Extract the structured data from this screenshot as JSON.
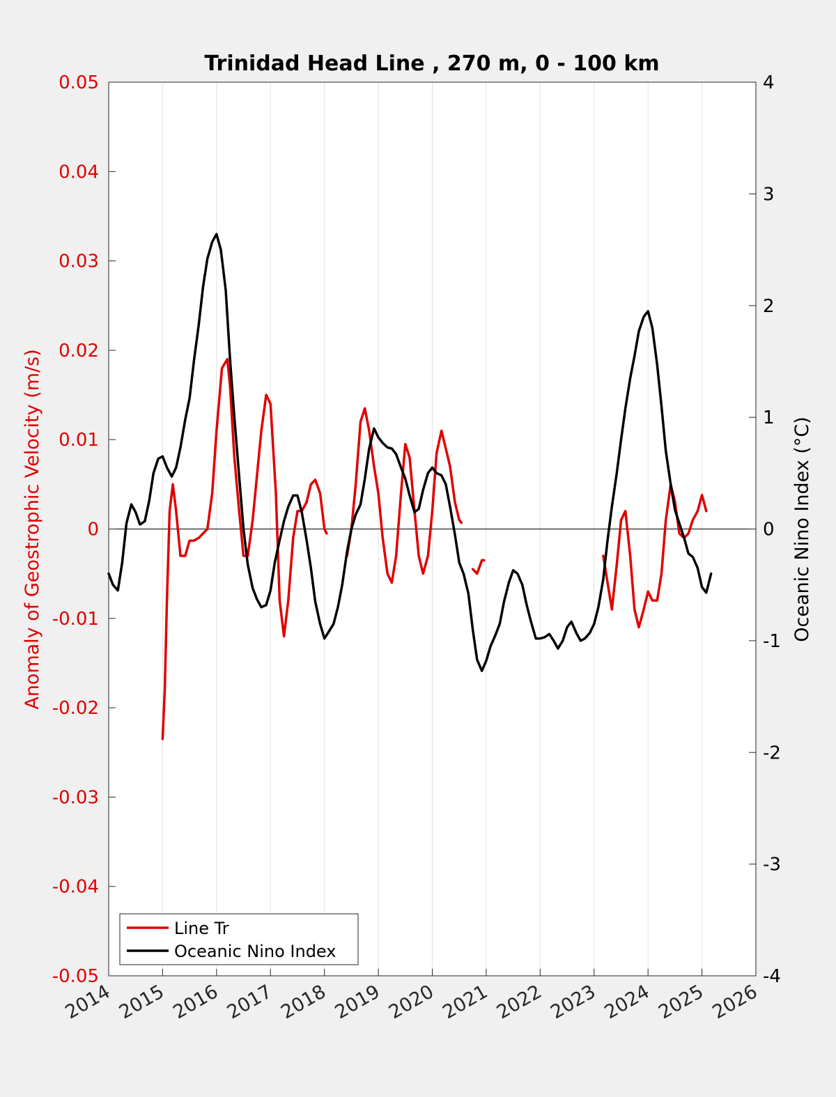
{
  "chart_data": {
    "type": "line",
    "title": "Trinidad Head Line , 270 m, 0 - 100 km",
    "xlabel": "",
    "ylabel_left": "Anomaly of Geostrophic Velocity (m/s)",
    "ylabel_right": "Oceanic Nino Index (°C)",
    "xlim": [
      2014,
      2026
    ],
    "ylim_left": [
      -0.05,
      0.05
    ],
    "ylim_right": [
      -4,
      4
    ],
    "x_ticks": [
      "2014",
      "2015",
      "2016",
      "2017",
      "2018",
      "2019",
      "2020",
      "2021",
      "2022",
      "2023",
      "2024",
      "2025",
      "2026"
    ],
    "y_ticks_left": [
      "0.05",
      "0.04",
      "0.03",
      "0.02",
      "0.01",
      "0",
      "-0.01",
      "-0.02",
      "-0.03",
      "-0.04",
      "-0.05"
    ],
    "y_ticks_right": [
      "4",
      "3",
      "2",
      "1",
      "0",
      "-1",
      "-2",
      "-3",
      "-4"
    ],
    "grid": "vertical",
    "legend_position": "bottom-left",
    "colors": {
      "left_axis": "#e00000",
      "line_tr": "#e00000",
      "oni": "#000000",
      "background": "#f0f0f0",
      "plot_area": "#ffffff"
    },
    "series": [
      {
        "name": "Line Tr",
        "axis": "left",
        "segments": [
          [
            [
              2015.0,
              -0.0235
            ],
            [
              2015.04,
              -0.018
            ],
            [
              2015.08,
              -0.008
            ],
            [
              2015.13,
              0.002
            ],
            [
              2015.19,
              0.005
            ],
            [
              2015.25,
              0.002
            ],
            [
              2015.33,
              -0.003
            ],
            [
              2015.42,
              -0.003
            ],
            [
              2015.5,
              -0.0013
            ],
            [
              2015.58,
              -0.0013
            ],
            [
              2015.67,
              -0.001
            ],
            [
              2015.75,
              -0.0005
            ],
            [
              2015.83,
              0.0
            ],
            [
              2015.92,
              0.004
            ],
            [
              2016.0,
              0.011
            ],
            [
              2016.1,
              0.018
            ],
            [
              2016.2,
              0.019
            ],
            [
              2016.25,
              0.016
            ],
            [
              2016.33,
              0.008
            ],
            [
              2016.42,
              0.002
            ],
            [
              2016.5,
              -0.003
            ],
            [
              2016.58,
              -0.003
            ],
            [
              2016.67,
              0.001
            ],
            [
              2016.75,
              0.006
            ],
            [
              2016.83,
              0.011
            ],
            [
              2016.92,
              0.015
            ],
            [
              2017.0,
              0.014
            ],
            [
              2017.1,
              0.004
            ],
            [
              2017.17,
              -0.008
            ],
            [
              2017.25,
              -0.012
            ],
            [
              2017.33,
              -0.008
            ],
            [
              2017.42,
              -0.001
            ],
            [
              2017.5,
              0.002
            ],
            [
              2017.58,
              0.002
            ],
            [
              2017.67,
              0.003
            ],
            [
              2017.75,
              0.005
            ],
            [
              2017.83,
              0.0055
            ],
            [
              2017.92,
              0.004
            ],
            [
              2018.0,
              0.0
            ],
            [
              2018.04,
              -0.0005
            ]
          ],
          [
            [
              2018.42,
              -0.003
            ],
            [
              2018.5,
              0.0
            ],
            [
              2018.58,
              0.005
            ],
            [
              2018.67,
              0.012
            ],
            [
              2018.75,
              0.0135
            ],
            [
              2018.83,
              0.011
            ],
            [
              2018.92,
              0.007
            ],
            [
              2019.0,
              0.004
            ],
            [
              2019.08,
              -0.001
            ],
            [
              2019.17,
              -0.005
            ],
            [
              2019.25,
              -0.006
            ],
            [
              2019.33,
              -0.003
            ],
            [
              2019.42,
              0.004
            ],
            [
              2019.5,
              0.0095
            ],
            [
              2019.58,
              0.008
            ],
            [
              2019.67,
              0.002
            ],
            [
              2019.75,
              -0.003
            ],
            [
              2019.83,
              -0.005
            ],
            [
              2019.92,
              -0.003
            ],
            [
              2020.0,
              0.002
            ],
            [
              2020.08,
              0.0085
            ],
            [
              2020.17,
              0.011
            ],
            [
              2020.25,
              0.009
            ],
            [
              2020.33,
              0.007
            ],
            [
              2020.42,
              0.003
            ],
            [
              2020.5,
              0.001
            ],
            [
              2020.54,
              0.0007
            ]
          ],
          [
            [
              2020.75,
              -0.0045
            ],
            [
              2020.83,
              -0.005
            ],
            [
              2020.92,
              -0.0035
            ],
            [
              2020.96,
              -0.0035
            ]
          ],
          [
            [
              2023.17,
              -0.003
            ],
            [
              2023.25,
              -0.006
            ],
            [
              2023.33,
              -0.009
            ],
            [
              2023.42,
              -0.004
            ],
            [
              2023.5,
              0.001
            ],
            [
              2023.58,
              0.002
            ],
            [
              2023.67,
              -0.003
            ],
            [
              2023.75,
              -0.009
            ],
            [
              2023.83,
              -0.011
            ],
            [
              2023.92,
              -0.009
            ],
            [
              2024.0,
              -0.007
            ],
            [
              2024.08,
              -0.008
            ],
            [
              2024.17,
              -0.008
            ],
            [
              2024.25,
              -0.005
            ],
            [
              2024.33,
              0.001
            ],
            [
              2024.42,
              0.005
            ],
            [
              2024.5,
              0.003
            ],
            [
              2024.58,
              -0.0005
            ],
            [
              2024.67,
              -0.001
            ],
            [
              2024.75,
              -0.0005
            ],
            [
              2024.83,
              0.001
            ],
            [
              2024.92,
              0.002
            ],
            [
              2025.0,
              0.0038
            ],
            [
              2025.08,
              0.002
            ]
          ]
        ]
      },
      {
        "name": "Oceanic Nino Index",
        "axis": "right",
        "segments": [
          [
            [
              2014.0,
              -0.4
            ],
            [
              2014.08,
              -0.5
            ],
            [
              2014.17,
              -0.55
            ],
            [
              2014.25,
              -0.3
            ],
            [
              2014.33,
              0.05
            ],
            [
              2014.42,
              0.22
            ],
            [
              2014.5,
              0.15
            ],
            [
              2014.58,
              0.04
            ],
            [
              2014.67,
              0.07
            ],
            [
              2014.75,
              0.25
            ],
            [
              2014.83,
              0.5
            ],
            [
              2014.92,
              0.63
            ],
            [
              2015.0,
              0.65
            ],
            [
              2015.08,
              0.55
            ],
            [
              2015.17,
              0.47
            ],
            [
              2015.25,
              0.55
            ],
            [
              2015.33,
              0.73
            ],
            [
              2015.42,
              0.98
            ],
            [
              2015.5,
              1.17
            ],
            [
              2015.58,
              1.5
            ],
            [
              2015.67,
              1.83
            ],
            [
              2015.75,
              2.17
            ],
            [
              2015.83,
              2.42
            ],
            [
              2015.92,
              2.57
            ],
            [
              2016.0,
              2.64
            ],
            [
              2016.08,
              2.5
            ],
            [
              2016.17,
              2.14
            ],
            [
              2016.25,
              1.52
            ],
            [
              2016.33,
              1.0
            ],
            [
              2016.42,
              0.47
            ],
            [
              2016.5,
              0.0
            ],
            [
              2016.58,
              -0.32
            ],
            [
              2016.67,
              -0.53
            ],
            [
              2016.75,
              -0.63
            ],
            [
              2016.83,
              -0.7
            ],
            [
              2016.92,
              -0.68
            ],
            [
              2017.0,
              -0.55
            ],
            [
              2017.08,
              -0.3
            ],
            [
              2017.17,
              -0.1
            ],
            [
              2017.25,
              0.07
            ],
            [
              2017.33,
              0.2
            ],
            [
              2017.42,
              0.3
            ],
            [
              2017.5,
              0.3
            ],
            [
              2017.58,
              0.15
            ],
            [
              2017.67,
              -0.1
            ],
            [
              2017.75,
              -0.35
            ],
            [
              2017.83,
              -0.65
            ],
            [
              2017.92,
              -0.85
            ],
            [
              2018.0,
              -0.98
            ],
            [
              2018.08,
              -0.92
            ],
            [
              2018.17,
              -0.85
            ],
            [
              2018.25,
              -0.7
            ],
            [
              2018.33,
              -0.5
            ],
            [
              2018.42,
              -0.2
            ],
            [
              2018.5,
              0.0
            ],
            [
              2018.58,
              0.13
            ],
            [
              2018.67,
              0.22
            ],
            [
              2018.75,
              0.45
            ],
            [
              2018.83,
              0.72
            ],
            [
              2018.92,
              0.9
            ],
            [
              2019.0,
              0.82
            ],
            [
              2019.08,
              0.77
            ],
            [
              2019.17,
              0.73
            ],
            [
              2019.25,
              0.72
            ],
            [
              2019.33,
              0.67
            ],
            [
              2019.42,
              0.55
            ],
            [
              2019.5,
              0.45
            ],
            [
              2019.58,
              0.3
            ],
            [
              2019.67,
              0.15
            ],
            [
              2019.75,
              0.18
            ],
            [
              2019.83,
              0.35
            ],
            [
              2019.92,
              0.5
            ],
            [
              2020.0,
              0.55
            ],
            [
              2020.08,
              0.5
            ],
            [
              2020.17,
              0.48
            ],
            [
              2020.25,
              0.4
            ],
            [
              2020.33,
              0.2
            ],
            [
              2020.42,
              -0.05
            ],
            [
              2020.5,
              -0.3
            ],
            [
              2020.58,
              -0.4
            ],
            [
              2020.67,
              -0.58
            ],
            [
              2020.75,
              -0.9
            ],
            [
              2020.83,
              -1.17
            ],
            [
              2020.92,
              -1.27
            ],
            [
              2021.0,
              -1.18
            ],
            [
              2021.08,
              -1.05
            ],
            [
              2021.17,
              -0.95
            ],
            [
              2021.25,
              -0.85
            ],
            [
              2021.33,
              -0.65
            ],
            [
              2021.42,
              -0.48
            ],
            [
              2021.5,
              -0.37
            ],
            [
              2021.58,
              -0.4
            ],
            [
              2021.67,
              -0.5
            ],
            [
              2021.75,
              -0.68
            ],
            [
              2021.83,
              -0.83
            ],
            [
              2021.92,
              -0.98
            ],
            [
              2022.0,
              -0.98
            ],
            [
              2022.08,
              -0.97
            ],
            [
              2022.17,
              -0.94
            ],
            [
              2022.25,
              -1.0
            ],
            [
              2022.33,
              -1.07
            ],
            [
              2022.42,
              -1.0
            ],
            [
              2022.5,
              -0.88
            ],
            [
              2022.58,
              -0.83
            ],
            [
              2022.67,
              -0.93
            ],
            [
              2022.75,
              -1.0
            ],
            [
              2022.83,
              -0.98
            ],
            [
              2022.92,
              -0.93
            ],
            [
              2023.0,
              -0.85
            ],
            [
              2023.08,
              -0.7
            ],
            [
              2023.17,
              -0.45
            ],
            [
              2023.25,
              -0.1
            ],
            [
              2023.33,
              0.2
            ],
            [
              2023.42,
              0.5
            ],
            [
              2023.5,
              0.8
            ],
            [
              2023.58,
              1.08
            ],
            [
              2023.67,
              1.35
            ],
            [
              2023.75,
              1.55
            ],
            [
              2023.83,
              1.77
            ],
            [
              2023.92,
              1.9
            ],
            [
              2024.0,
              1.95
            ],
            [
              2024.08,
              1.8
            ],
            [
              2024.17,
              1.47
            ],
            [
              2024.25,
              1.1
            ],
            [
              2024.33,
              0.7
            ],
            [
              2024.42,
              0.4
            ],
            [
              2024.5,
              0.17
            ],
            [
              2024.58,
              0.05
            ],
            [
              2024.67,
              -0.08
            ],
            [
              2024.75,
              -0.22
            ],
            [
              2024.83,
              -0.25
            ],
            [
              2024.92,
              -0.35
            ],
            [
              2025.0,
              -0.52
            ],
            [
              2025.08,
              -0.57
            ],
            [
              2025.17,
              -0.4
            ]
          ]
        ]
      }
    ]
  }
}
